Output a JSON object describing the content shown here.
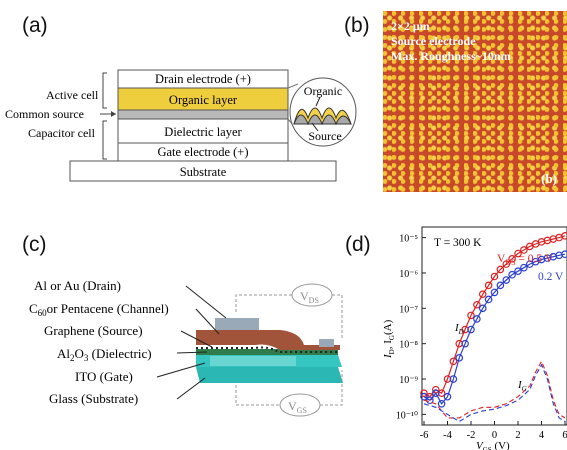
{
  "panels": {
    "a": "(a)",
    "b": "(b)",
    "c": "(c)",
    "d": "(d)"
  },
  "panel_a": {
    "side_labels": [
      "Active cell",
      "Common source",
      "Capacitor cell"
    ],
    "layers": [
      "Drain electrode (+)",
      "Organic layer",
      "Dielectric layer",
      "Gate electrode (+)",
      "Substrate"
    ],
    "inset_top": "Organic",
    "inset_bottom": "Source"
  },
  "panel_b": {
    "lines": [
      "2×2 μm",
      "Source electrode",
      "Max. Roughness~10nm"
    ],
    "corner": "(b)"
  },
  "panel_c": {
    "labels": [
      "Al or Au (Drain)",
      "C₆₀or Pentacene (Channel)",
      "Graphene (Source)",
      "Al₂O₃ (Dielectric)",
      "ITO (Gate)",
      "Glass (Substrate)"
    ],
    "vds": "V",
    "vds_sub": "DS",
    "vgs": "V",
    "vgs_sub": "GS"
  },
  "chart_data": {
    "type": "scatter",
    "title": "",
    "annotation_T": "T = 300 K",
    "xlabel": "V",
    "xlabel_sub": "GS",
    "xlabel_unit": " (V)",
    "ylabel": "I",
    "ylabel_sub": "D",
    "ylabel_mid": ", I",
    "ylabel_sub2": "G",
    "ylabel_unit": "(A)",
    "xlim": [
      -6,
      6
    ],
    "ylim_log10": [
      -10.3,
      -4.7
    ],
    "yscale": "log",
    "x_ticks": [
      "-6",
      "-4",
      "-2",
      "0",
      "2",
      "4",
      "6"
    ],
    "y_ticks": [
      "10⁻⁵",
      "10⁻⁶",
      "10⁻⁷",
      "10⁻⁸",
      "10⁻⁹",
      "10⁻¹⁰"
    ],
    "legend_vds": "V",
    "legend_vds_sub": "DS",
    "legend_vds_value": " = 0.5 V",
    "legend_low": "0.2 V",
    "label_ID": "I",
    "label_ID_sub": "D",
    "label_IG": "I",
    "label_IG_sub": "G",
    "colors": {
      "red": "#e02020",
      "blue": "#2a3fd0"
    },
    "series": [
      {
        "name": "0.5 V",
        "x": [
          -6,
          -5.5,
          -5,
          -4.5,
          -4,
          -3.5,
          -3,
          -2.5,
          -2,
          -1.5,
          -1,
          -0.5,
          0,
          0.5,
          1,
          1.5,
          2,
          2.5,
          3,
          3.5,
          4,
          4.5,
          5,
          5.5,
          6
        ],
        "y_log10": [
          -9.4,
          -9.5,
          -9.3,
          -9.4,
          -9.0,
          -8.5,
          -8.0,
          -7.6,
          -7.2,
          -6.9,
          -6.6,
          -6.35,
          -6.1,
          -5.9,
          -5.75,
          -5.6,
          -5.45,
          -5.35,
          -5.25,
          -5.18,
          -5.12,
          -5.08,
          -5.04,
          -5.0,
          -4.95
        ]
      },
      {
        "name": "0.2 V",
        "x": [
          -6,
          -5.5,
          -5,
          -4.5,
          -4,
          -3.5,
          -3,
          -2.5,
          -2,
          -1.5,
          -1,
          -0.5,
          0,
          0.5,
          1,
          1.5,
          2,
          2.5,
          3,
          3.5,
          4,
          4.5,
          5,
          5.5,
          6
        ],
        "y_log10": [
          -9.5,
          -9.6,
          -9.4,
          -9.7,
          -9.5,
          -9.0,
          -8.4,
          -8.0,
          -7.6,
          -7.3,
          -7.0,
          -6.75,
          -6.55,
          -6.35,
          -6.2,
          -6.05,
          -5.95,
          -5.85,
          -5.75,
          -5.68,
          -5.62,
          -5.58,
          -5.54,
          -5.5,
          -5.47
        ]
      },
      {
        "name": "I_G 0.5 V",
        "x": [
          -6,
          -5,
          -4,
          -3,
          -2,
          -1,
          0,
          1,
          2,
          3,
          3.5,
          4,
          4.5,
          5,
          5.5,
          6
        ],
        "y_log10": [
          -9.6,
          -9.7,
          -10.1,
          -10.1,
          -9.9,
          -9.8,
          -9.8,
          -9.7,
          -9.5,
          -9.2,
          -8.8,
          -8.5,
          -8.9,
          -9.6,
          -10.0,
          -10.1
        ]
      },
      {
        "name": "I_G 0.2 V",
        "x": [
          -6,
          -5,
          -4,
          -3,
          -2,
          -1,
          0,
          1,
          2,
          3,
          3.5,
          4,
          4.5,
          5,
          5.5,
          6
        ],
        "y_log10": [
          -9.7,
          -9.8,
          -10.0,
          -10.2,
          -10.0,
          -9.9,
          -9.85,
          -9.75,
          -9.6,
          -9.3,
          -8.9,
          -8.6,
          -9.0,
          -9.7,
          -10.1,
          -10.2
        ]
      }
    ]
  }
}
